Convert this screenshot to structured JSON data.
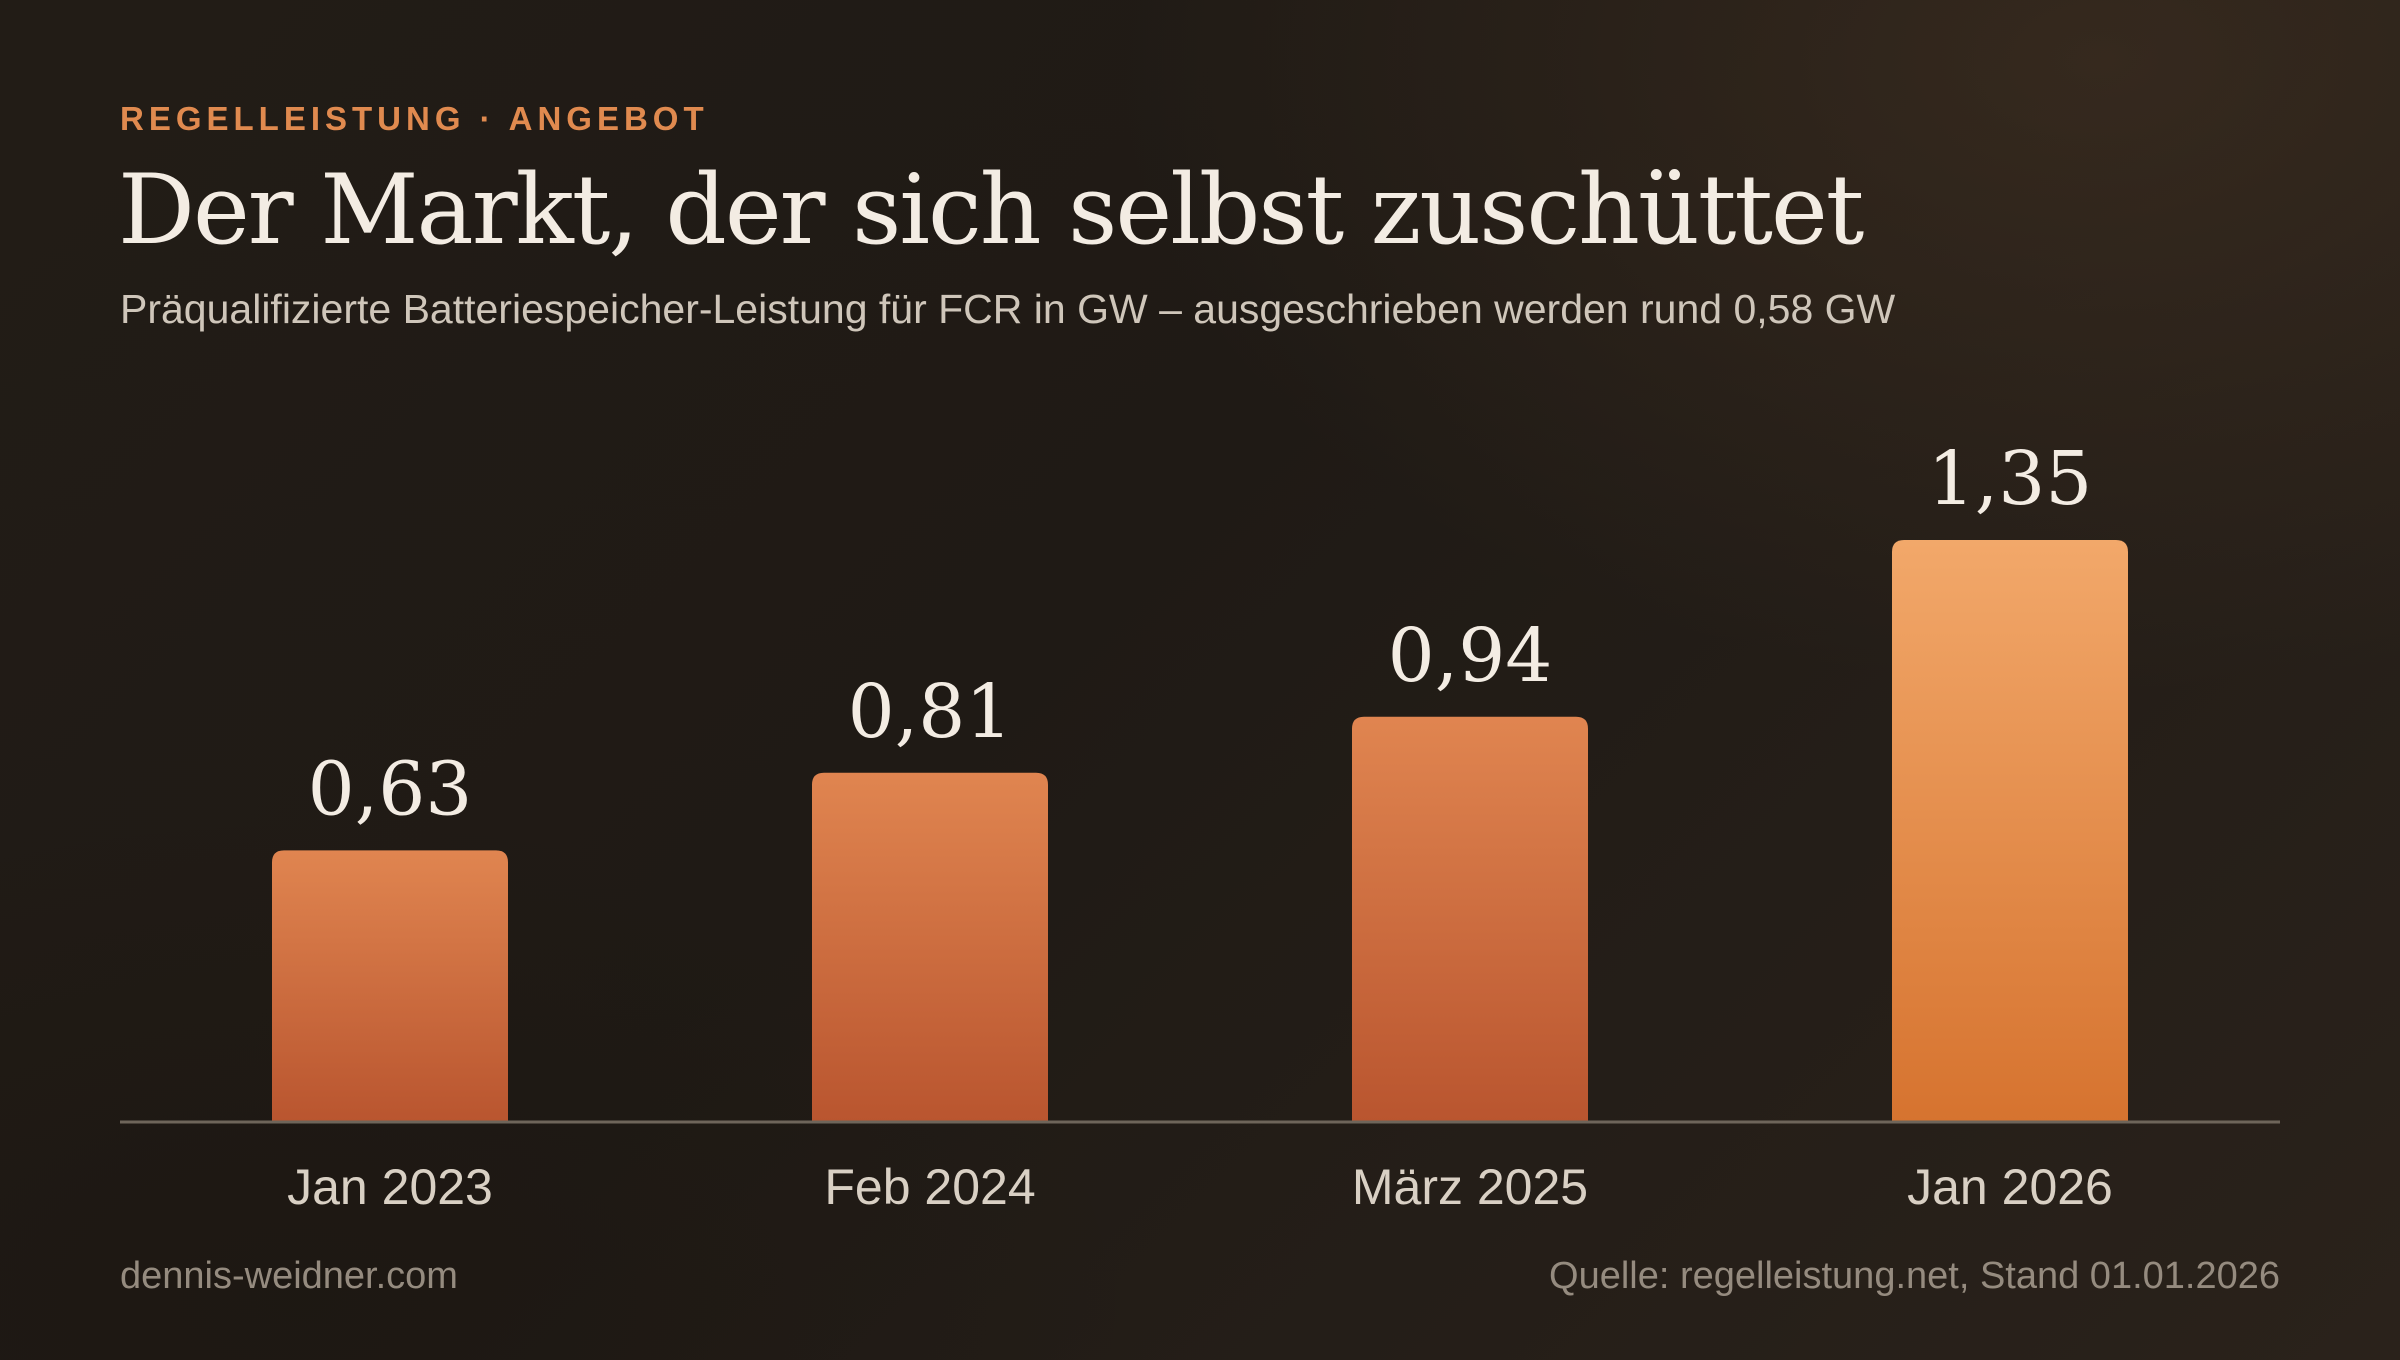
{
  "header": {
    "kicker": "REGELLEISTUNG · ANGEBOT",
    "title": "Der Markt, der sich selbst zuschüttet",
    "subtitle": "Präqualifizierte Batteriespeicher-Leistung für FCR in GW – ausgeschrieben werden rund 0,58 GW"
  },
  "footer": {
    "author": "dennis-weidner.com",
    "source": "Quelle: regelleistung.net, Stand 01.01.2026"
  },
  "colors": {
    "background": "#1e1914",
    "accent": "#e08a4f",
    "bar_top": "#e08550",
    "bar_bottom": "#b9552f",
    "highlight_bar_top": "#f2a86a",
    "highlight_bar_bottom": "#d6732f",
    "baseline": "#6e655a",
    "value_text": "#f3ece3",
    "category_text": "#d9d0c4"
  },
  "chart_data": {
    "type": "bar",
    "categories": [
      "Jan 2023",
      "Feb 2024",
      "März 2025",
      "Jan 2026"
    ],
    "values": [
      0.63,
      0.81,
      0.94,
      1.35
    ],
    "value_labels": [
      "0,63",
      "0,81",
      "0,94",
      "1,35"
    ],
    "unit": "GW",
    "highlight_index": 3,
    "title": "Der Markt, der sich selbst zuschüttet",
    "xlabel": "",
    "ylabel": "",
    "ylim": [
      0,
      1.35
    ],
    "grid": false,
    "legend": "none"
  }
}
